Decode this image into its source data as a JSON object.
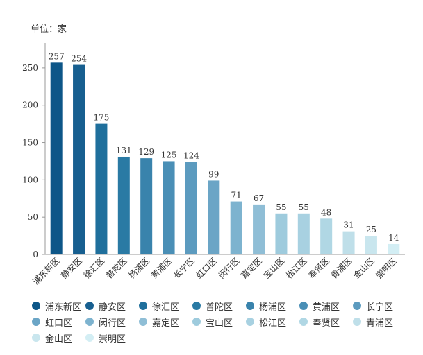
{
  "unit_label": "单位：家",
  "chart_data": {
    "type": "bar",
    "categories": [
      "浦东新区",
      "静安区",
      "徐汇区",
      "普陀区",
      "杨浦区",
      "黄浦区",
      "长宁区",
      "虹口区",
      "闵行区",
      "嘉定区",
      "宝山区",
      "松江区",
      "奉贤区",
      "青浦区",
      "金山区",
      "崇明区"
    ],
    "values": [
      257,
      254,
      175,
      131,
      129,
      125,
      124,
      99,
      71,
      67,
      55,
      55,
      48,
      31,
      25,
      14
    ],
    "colors": [
      "#0d5688",
      "#175f90",
      "#1f6f9c",
      "#2a7aa4",
      "#3983ac",
      "#4a8fb6",
      "#5c9bbf",
      "#6ba5c6",
      "#7db3cf",
      "#8fbed6",
      "#9ecbdd",
      "#a8d1e1",
      "#b0d7e4",
      "#bfdfe9",
      "#c9e6ee",
      "#d3eef4"
    ],
    "ylim": [
      0,
      270
    ],
    "yticks": [
      0,
      50,
      100,
      150,
      200,
      250
    ],
    "legend_position": "bottom",
    "grid": false
  }
}
